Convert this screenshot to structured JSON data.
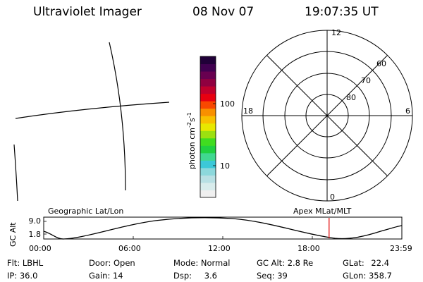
{
  "header": {
    "title": "Ultraviolet Imager",
    "date": "08 Nov 07",
    "time": "19:07:35 UT"
  },
  "colorbar": {
    "label_main": "photon cm",
    "label_exp1": "-2",
    "label_s": "s",
    "label_exp2": "-1",
    "tick_high": "100",
    "tick_low": "10",
    "colors": [
      "#f0f0f0",
      "#d8ecec",
      "#b8e0e4",
      "#8cd8dc",
      "#3cc8d8",
      "#40d890",
      "#20d040",
      "#40dc20",
      "#9ce010",
      "#e8e800",
      "#f8c000",
      "#f89000",
      "#f84800",
      "#e80010",
      "#c0002c",
      "#900040",
      "#680050",
      "#400050",
      "#200038"
    ]
  },
  "polar": {
    "mlt_labels": {
      "top": "12",
      "bottom": "0",
      "left": "18",
      "right": "6"
    },
    "lat_labels": [
      "60",
      "70",
      "80"
    ]
  },
  "orbit": {
    "left_title": "Geographic Lat/Lon",
    "right_title": "Apex MLat/MLT",
    "axis_label": "GC Alt",
    "y_top": "9.0",
    "y_bottom": "1.8",
    "x_ticks": [
      "00:00",
      "06:00",
      "12:00",
      "18:00",
      "23:59"
    ],
    "current_time_hours": 19.126
  },
  "info": {
    "flt_label": "Flt:",
    "flt_value": "LBHL",
    "ip_label": "IP:",
    "ip_value": "36.0",
    "door_label": "Door:",
    "door_value": "Open",
    "gain_label": "Gain:",
    "gain_value": "14",
    "mode_label": "Mode:",
    "mode_value": "Normal",
    "dsp_label": "Dsp:",
    "dsp_value": "3.6",
    "gcalt_label": "GC Alt:",
    "gcalt_value": "2.8 Re",
    "seq_label": "Seq:",
    "seq_value": "39",
    "glat_label": "GLat:",
    "glat_value": "22.4",
    "glon_label": "GLon:",
    "glon_value": "358.7"
  }
}
